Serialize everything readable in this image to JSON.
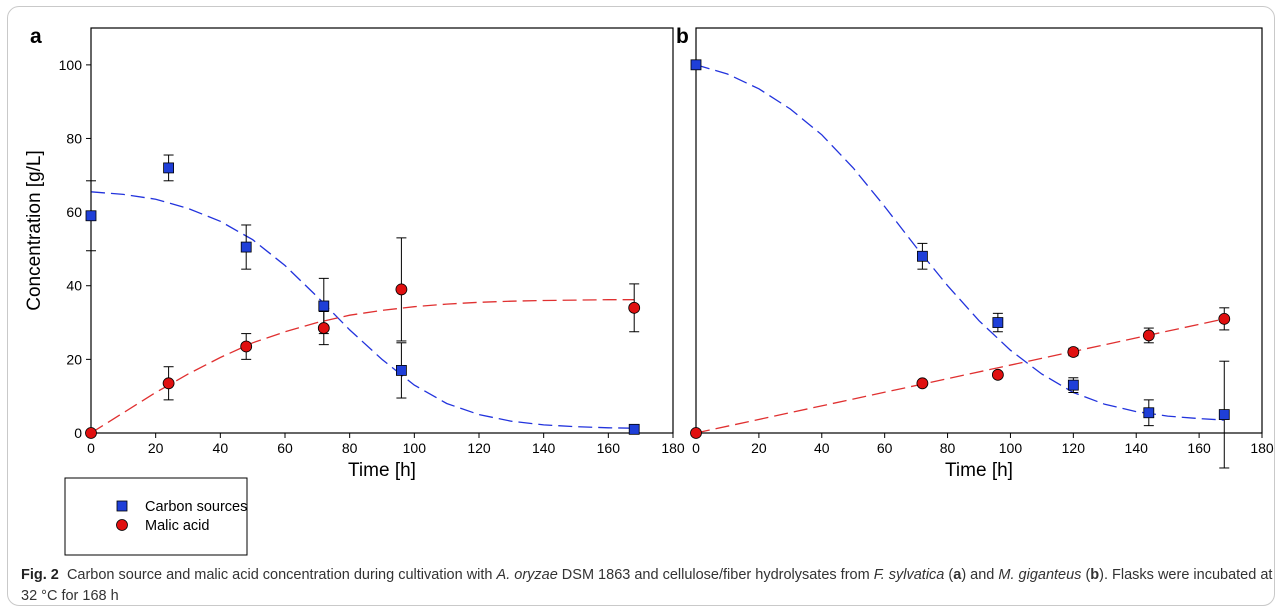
{
  "figure": {
    "panels": [
      "a",
      "b"
    ],
    "ylabel": "Concentration [g/L]",
    "xlabel": "Time [h]",
    "legend": [
      "Carbon sources",
      "Malic acid"
    ]
  },
  "caption": {
    "label": "Fig. 2",
    "parts": [
      "Carbon source and malic acid concentration during cultivation with ",
      "A. oryzae",
      " DSM 1863 and cellulose/fiber hydrolysates from ",
      "F. sylvatica",
      " (",
      "a",
      ") and ",
      "M. giganteus",
      " (",
      "b",
      "). Flasks were incubated at 32 °C for 168 h"
    ]
  },
  "colors": {
    "carbon": "#1f3fd8",
    "malic": "#e01010",
    "carbon_fit": "#2233dd",
    "malic_fit": "#e03030"
  },
  "chart_data": [
    {
      "type": "scatter",
      "panel": "a",
      "xlabel": "Time [h]",
      "ylabel": "Concentration [g/L]",
      "xlim": [
        0,
        180
      ],
      "ylim": [
        0,
        110
      ],
      "xticks": [
        0,
        20,
        40,
        60,
        80,
        100,
        120,
        140,
        160,
        180
      ],
      "yticks": [
        0,
        20,
        40,
        60,
        80,
        100
      ],
      "grid": false,
      "legend_position": "bottom-left-outside",
      "series": [
        {
          "name": "Carbon sources",
          "marker": "square",
          "x": [
            0,
            24,
            48,
            72,
            96,
            168
          ],
          "y": [
            59,
            72,
            50.5,
            34.5,
            17,
            1
          ],
          "err": [
            9.5,
            3.5,
            6,
            7.5,
            7.5,
            1
          ],
          "fit": {
            "x": [
              0,
              10,
              20,
              30,
              40,
              50,
              60,
              70,
              80,
              90,
              100,
              110,
              120,
              130,
              140,
              150,
              160,
              168
            ],
            "y": [
              65.5,
              64.8,
              63.5,
              61,
              57.5,
              52.5,
              45.5,
              37,
              28,
              20,
              13,
              8,
              5,
              3.2,
              2.2,
              1.7,
              1.4,
              1.3
            ]
          }
        },
        {
          "name": "Malic acid",
          "marker": "circle",
          "x": [
            0,
            24,
            48,
            72,
            96,
            168
          ],
          "y": [
            0,
            13.5,
            23.5,
            28.5,
            39,
            34
          ],
          "err": [
            0,
            4.5,
            3.5,
            4.5,
            14,
            6.5
          ],
          "fit": {
            "x": [
              0,
              10,
              20,
              30,
              40,
              50,
              60,
              70,
              80,
              90,
              100,
              110,
              120,
              130,
              140,
              150,
              160,
              168
            ],
            "y": [
              0,
              5.5,
              11,
              16,
              20.5,
              24.5,
              27.5,
              30,
              32,
              33.3,
              34.3,
              35,
              35.5,
              35.8,
              36,
              36.1,
              36.2,
              36.2
            ]
          }
        }
      ]
    },
    {
      "type": "scatter",
      "panel": "b",
      "xlabel": "Time [h]",
      "ylabel": "Concentration [g/L]",
      "xlim": [
        0,
        180
      ],
      "ylim": [
        0,
        110
      ],
      "xticks": [
        0,
        20,
        40,
        60,
        80,
        100,
        120,
        140,
        160,
        180
      ],
      "grid": false,
      "series": [
        {
          "name": "Carbon sources",
          "marker": "square",
          "x": [
            0,
            72,
            96,
            120,
            144,
            168
          ],
          "y": [
            100,
            48,
            30,
            13,
            5.5,
            5
          ],
          "err": [
            0,
            3.5,
            2.5,
            2,
            3.5,
            14.5
          ],
          "fit": {
            "x": [
              0,
              10,
              20,
              30,
              40,
              50,
              60,
              70,
              80,
              90,
              100,
              110,
              120,
              130,
              140,
              150,
              160,
              168
            ],
            "y": [
              100,
              97.5,
              93.5,
              88,
              81,
              72,
              61.5,
              50.5,
              40,
              30.5,
              22.5,
              16,
              11,
              7.8,
              5.8,
              4.6,
              3.9,
              3.5
            ]
          }
        },
        {
          "name": "Malic acid",
          "marker": "circle",
          "x": [
            0,
            72,
            96,
            120,
            144,
            168
          ],
          "y": [
            0,
            13.5,
            15.8,
            22,
            26.5,
            31
          ],
          "err": [
            0,
            0.5,
            0.5,
            1,
            2,
            3
          ],
          "fit": {
            "x": [
              0,
              168
            ],
            "y": [
              0,
              31
            ]
          }
        }
      ]
    }
  ]
}
